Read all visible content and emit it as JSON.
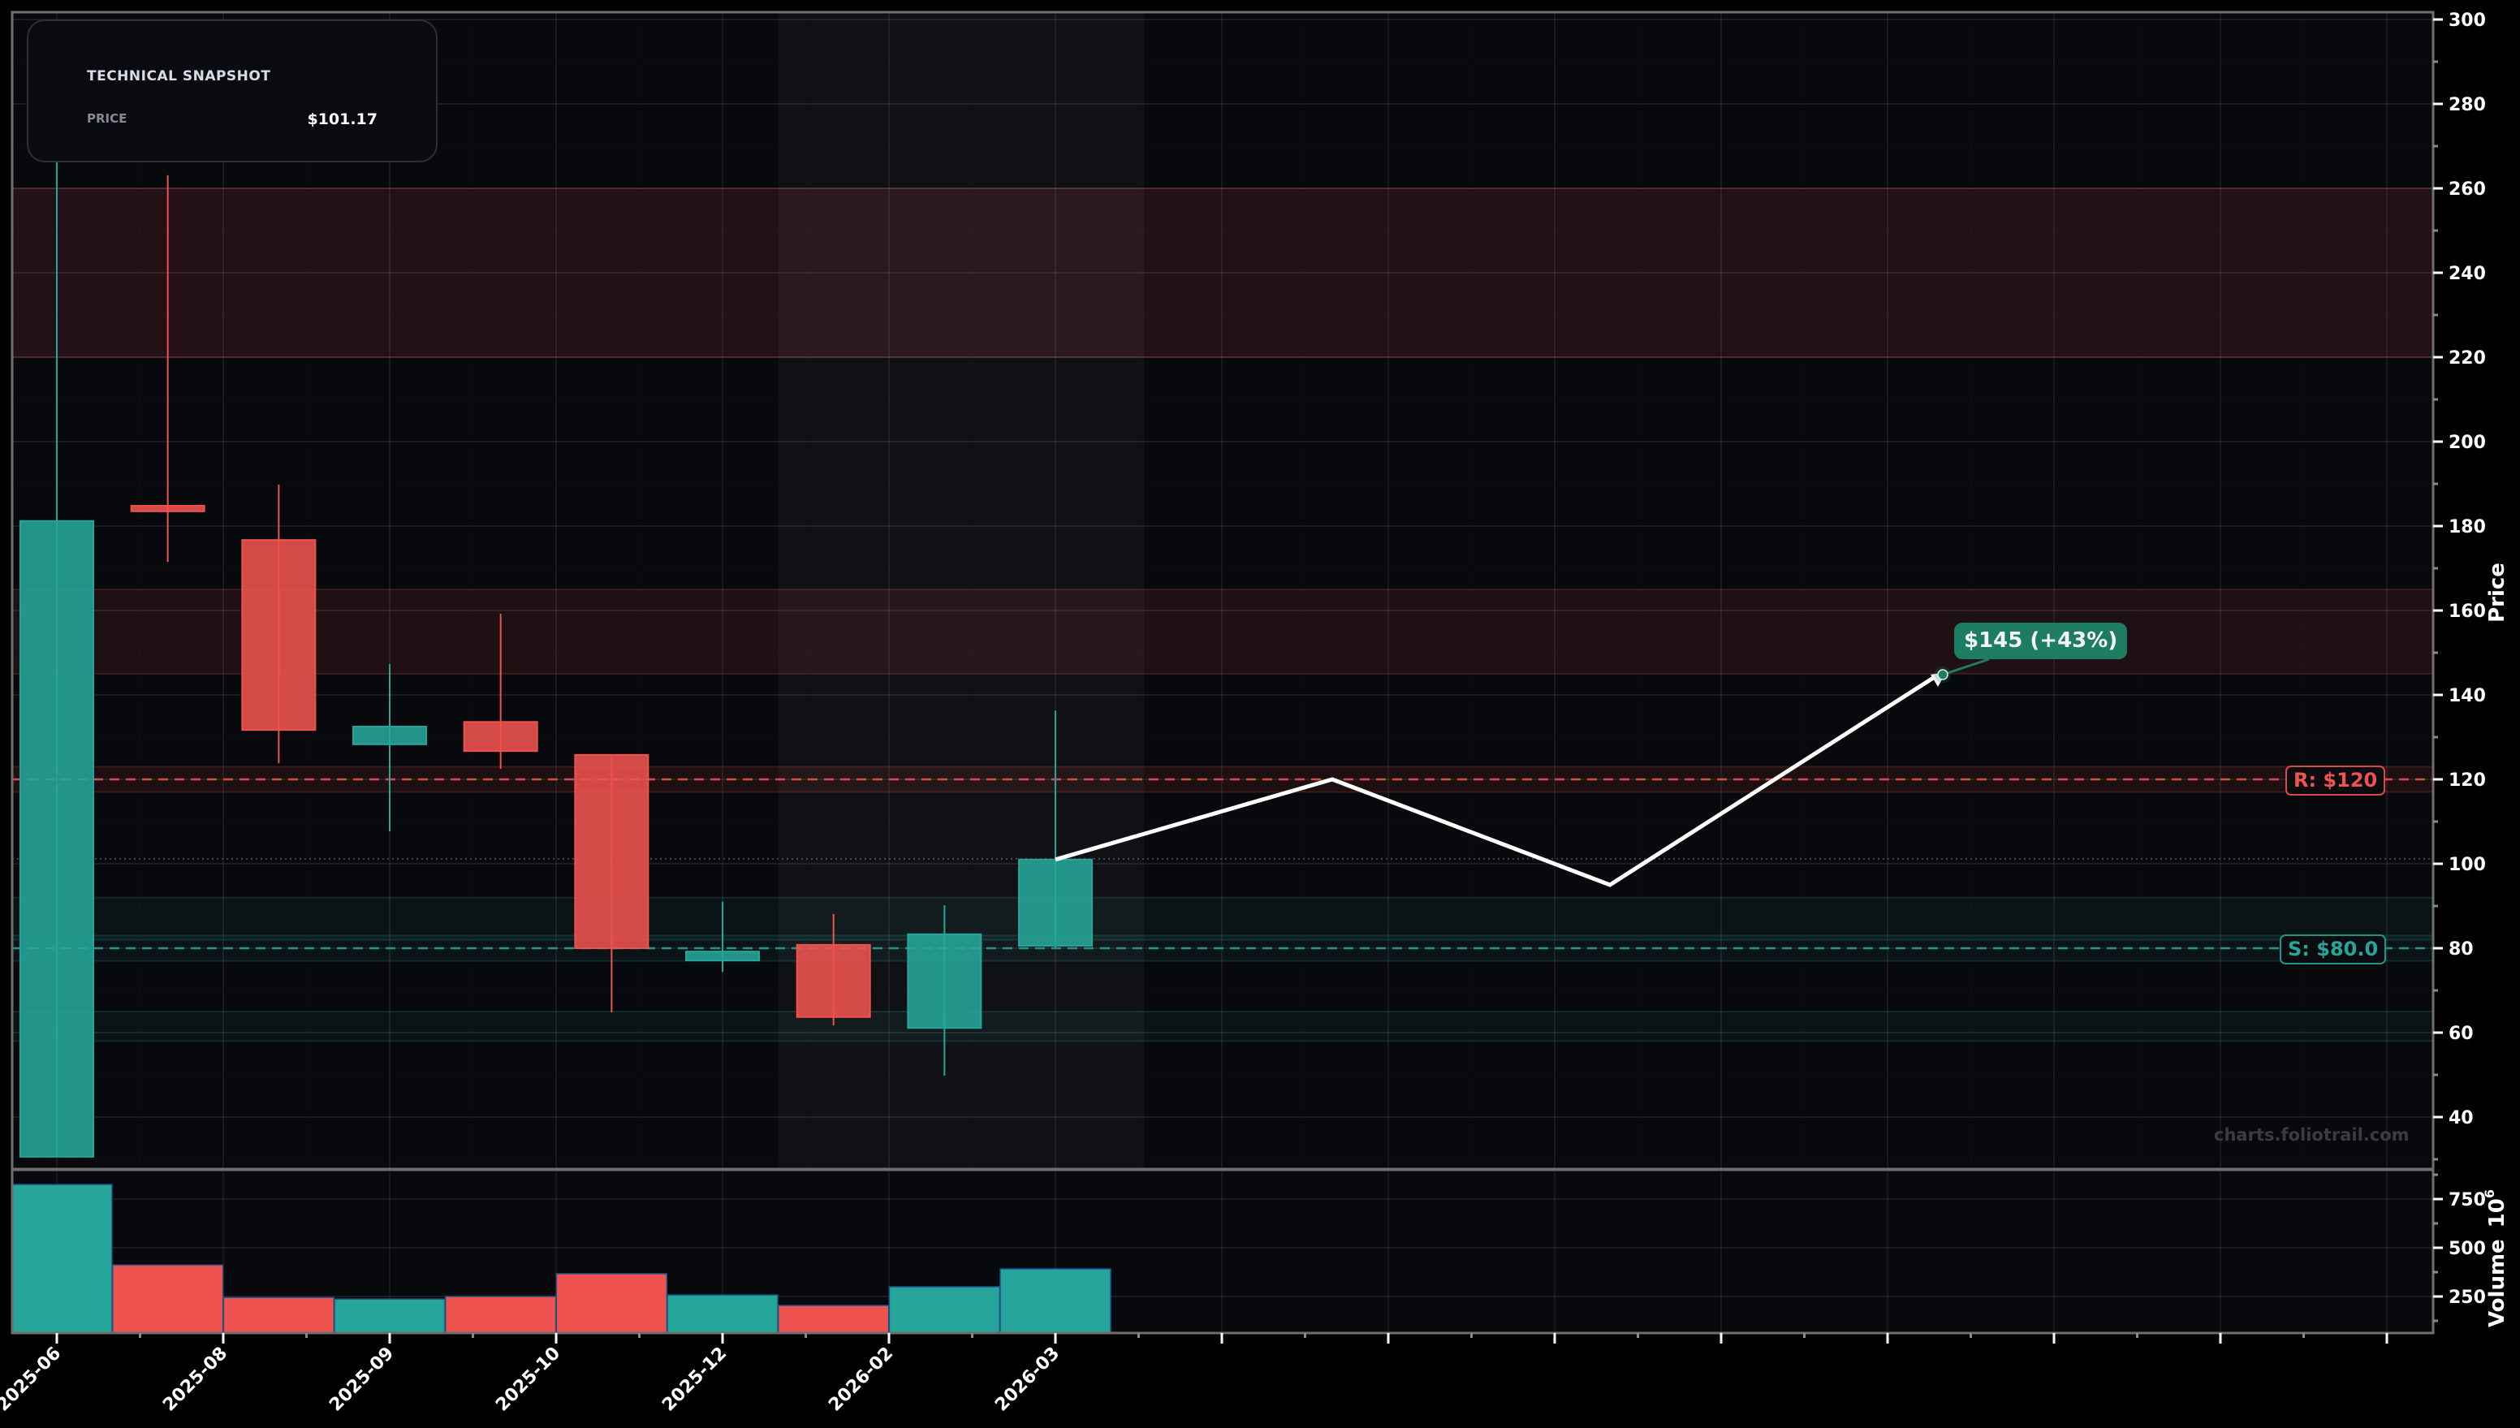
{
  "snapshot": {
    "title": "TECHNICAL SNAPSHOT",
    "price_label": "PRICE",
    "price_value": "$101.17"
  },
  "levels": {
    "resistance_label": "R: $120",
    "support_label": "S: $80.0"
  },
  "projection": {
    "label": "$145 (+43%)"
  },
  "watermark": "charts.foliotrail.com",
  "axes": {
    "price_title": "Price",
    "volume_title": "Volume",
    "volume_exponent": "10",
    "volume_exponent_power": "6"
  },
  "colors": {
    "background": "#000000",
    "pane_bg": "#08090d",
    "up": "#26a69a",
    "down": "#ef5350",
    "resistance_zone": "#200b0e",
    "resistance_mid_zone": "#1d1216",
    "support_zone": "#0b1d1c",
    "projection_label": "#1d7c62",
    "projection_line": "#ffffff"
  },
  "chart_data": {
    "type": "candlestick",
    "title": "",
    "xlabel": "",
    "ylabel": "Price",
    "ylim": [
      28,
      301
    ],
    "x_tick_labels": [
      "2025-06",
      "2025-08",
      "2025-09",
      "2025-10",
      "2025-12",
      "2026-02",
      "2026-03"
    ],
    "candles": [
      {
        "open": 30.6,
        "high": 299,
        "low": 30.6,
        "close": 181.2
      },
      {
        "open": 184.8,
        "high": 263.1,
        "low": 171.5,
        "close": 183.5
      },
      {
        "open": 176.7,
        "high": 189.8,
        "low": 123.8,
        "close": 131.7
      },
      {
        "open": 128.3,
        "high": 147.3,
        "low": 107.7,
        "close": 132.5
      },
      {
        "open": 133.6,
        "high": 159.2,
        "low": 122.5,
        "close": 126.7
      },
      {
        "open": 125.8,
        "high": 125.8,
        "low": 64.8,
        "close": 80.0
      },
      {
        "open": 77.1,
        "high": 91.0,
        "low": 74.4,
        "close": 79.2
      },
      {
        "open": 80.8,
        "high": 88.1,
        "low": 61.7,
        "close": 63.7
      },
      {
        "open": 61.1,
        "high": 90.2,
        "low": 49.8,
        "close": 83.3
      },
      {
        "open": 80.6,
        "high": 136.3,
        "low": 80.2,
        "close": 101.0
      }
    ],
    "volume": {
      "ylabel": "Volume 10^6",
      "yticks": [
        250,
        500,
        750
      ],
      "values": [
        825,
        412,
        245,
        237,
        250,
        367,
        258,
        204,
        300,
        392
      ],
      "directions": [
        "up",
        "down",
        "down",
        "up",
        "down",
        "down",
        "up",
        "down",
        "up",
        "up"
      ]
    },
    "y_ticks": [
      40,
      60,
      80,
      100,
      120,
      140,
      160,
      180,
      200,
      220,
      240,
      260,
      280,
      300
    ],
    "current_price": 101.17,
    "resistance_line": 120,
    "support_line": 80,
    "zones": [
      {
        "type": "resistance",
        "from": 220,
        "to": 260
      },
      {
        "type": "resistance",
        "from": 145,
        "to": 165
      },
      {
        "type": "resistance",
        "from": 117,
        "to": 123
      },
      {
        "type": "support",
        "from": 82,
        "to": 92
      },
      {
        "type": "support",
        "from": 77,
        "to": 83
      },
      {
        "type": "support",
        "from": 58,
        "to": 65
      }
    ],
    "projection_path": [
      {
        "step": 9,
        "price": 101.0
      },
      {
        "step": 11.5,
        "price": 120
      },
      {
        "step": 14,
        "price": 95
      },
      {
        "step": 17,
        "price": 145
      }
    ],
    "projection_target": {
      "price": 145,
      "change_pct": 43
    },
    "highlight_range": {
      "from_step": 6.5,
      "to_step": 9.8
    }
  }
}
